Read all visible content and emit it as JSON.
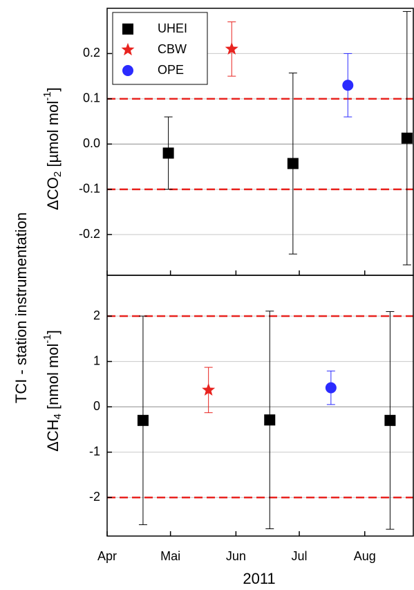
{
  "figure": {
    "ylabel": "TCI - station instrumentation",
    "xlabel": "2011"
  },
  "chart_data": [
    {
      "type": "errorbar-scatter",
      "ylabel_parts": [
        {
          "text": "ΔCO"
        },
        {
          "text": "2",
          "sub": true
        },
        {
          "text": " [µmol mol"
        },
        {
          "text": "-1",
          "sup": true
        },
        {
          "text": "]"
        }
      ],
      "xlim": [
        0,
        145
      ],
      "ylim": [
        -0.29,
        0.3
      ],
      "yticks": [
        {
          "value": -0.2,
          "label": "-0.2"
        },
        {
          "value": -0.1,
          "label": "-0.1"
        },
        {
          "value": 0,
          "label": "0.0"
        },
        {
          "value": 0.1,
          "label": "0.1"
        },
        {
          "value": 0.2,
          "label": "0.2"
        }
      ],
      "grid": true,
      "limit_lines": [
        0.1,
        -0.1
      ],
      "limit_color": "#e8231f",
      "legend": "upper left",
      "series": [
        {
          "name": "UHEI",
          "color": "#000000",
          "marker": "square",
          "x": [
            29,
            88,
            142
          ],
          "values": [
            -0.02,
            -0.043,
            0.013
          ],
          "errors": [
            0.08,
            0.2,
            0.28
          ]
        },
        {
          "name": "CBW",
          "color": "#e8231f",
          "marker": "star",
          "x": [
            59
          ],
          "values": [
            0.21
          ],
          "errors": [
            0.06
          ]
        },
        {
          "name": "OPE",
          "color": "#2b2bff",
          "marker": "circle",
          "x": [
            114
          ],
          "values": [
            0.13
          ],
          "errors": [
            0.07
          ]
        }
      ]
    },
    {
      "type": "errorbar-scatter",
      "ylabel_parts": [
        {
          "text": "ΔCH"
        },
        {
          "text": "4",
          "sub": true
        },
        {
          "text": " [nmol mol"
        },
        {
          "text": "-1",
          "sup": true
        },
        {
          "text": "]"
        }
      ],
      "xlim": [
        0,
        145
      ],
      "ylim": [
        -2.85,
        2.9
      ],
      "xticks": [
        {
          "value": 0,
          "label": "Apr"
        },
        {
          "value": 30,
          "label": "Mai"
        },
        {
          "value": 61,
          "label": "Jun"
        },
        {
          "value": 91,
          "label": "Jul"
        },
        {
          "value": 122,
          "label": "Aug"
        }
      ],
      "yticks": [
        -2,
        -1,
        0,
        1,
        2
      ],
      "grid": true,
      "limit_lines": [
        2,
        -2
      ],
      "limit_color": "#e8231f",
      "series": [
        {
          "name": "UHEI",
          "color": "#000000",
          "marker": "square",
          "x": [
            17,
            77,
            134
          ],
          "values": [
            -0.3,
            -0.29,
            -0.3
          ],
          "errors": [
            2.3,
            2.4,
            2.4
          ]
        },
        {
          "name": "CBW",
          "color": "#e8231f",
          "marker": "star",
          "x": [
            48
          ],
          "values": [
            0.37
          ],
          "errors": [
            0.5
          ]
        },
        {
          "name": "OPE",
          "color": "#2b2bff",
          "marker": "circle",
          "x": [
            106
          ],
          "values": [
            0.42
          ],
          "errors": [
            0.37
          ]
        }
      ]
    }
  ]
}
